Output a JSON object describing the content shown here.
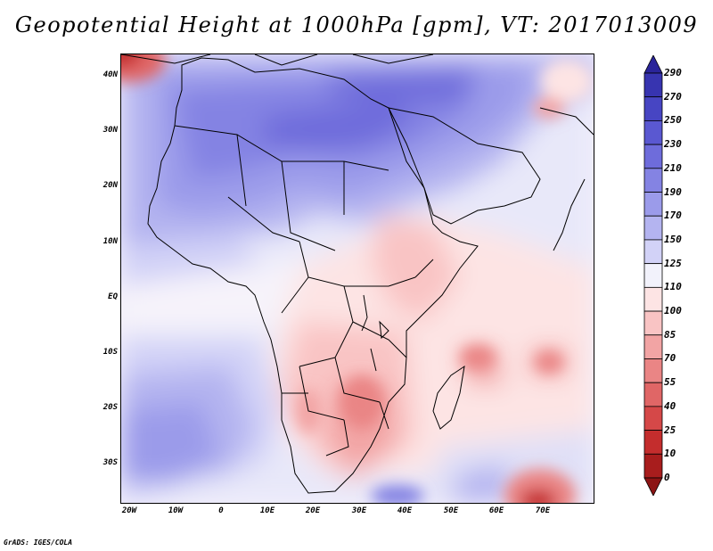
{
  "title": "Geopotential Height at 1000hPa [gpm], VT: 2017013009",
  "credit": "GrADS: IGES/COLA",
  "map": {
    "variable": "Geopotential Height",
    "level": "1000hPa",
    "units": "gpm",
    "valid_time": "2017013009",
    "lat_labels": [
      "40N",
      "30N",
      "20N",
      "10N",
      "EQ",
      "10S",
      "20S",
      "30S"
    ],
    "lon_labels": [
      "20W",
      "10W",
      "0",
      "10E",
      "20E",
      "30E",
      "40E",
      "50E",
      "60E",
      "70E"
    ]
  },
  "colorbar": {
    "levels": [
      "290",
      "270",
      "250",
      "230",
      "210",
      "190",
      "170",
      "150",
      "125",
      "110",
      "100",
      "85",
      "70",
      "55",
      "40",
      "25",
      "10",
      "0"
    ],
    "colors": [
      "#2a249a",
      "#3734b0",
      "#4745c3",
      "#5a58d1",
      "#6e6cdb",
      "#8483e3",
      "#9b9bea",
      "#b4b4f0",
      "#d2d2f7",
      "#f2f2fb",
      "#fde4e4",
      "#f9c4c4",
      "#f2a4a4",
      "#ea8585",
      "#e06666",
      "#d54848",
      "#c42d2d",
      "#a81d1d",
      "#8c1414"
    ]
  },
  "colors": {
    "land_border": "#000000",
    "background": "#ffffff"
  }
}
